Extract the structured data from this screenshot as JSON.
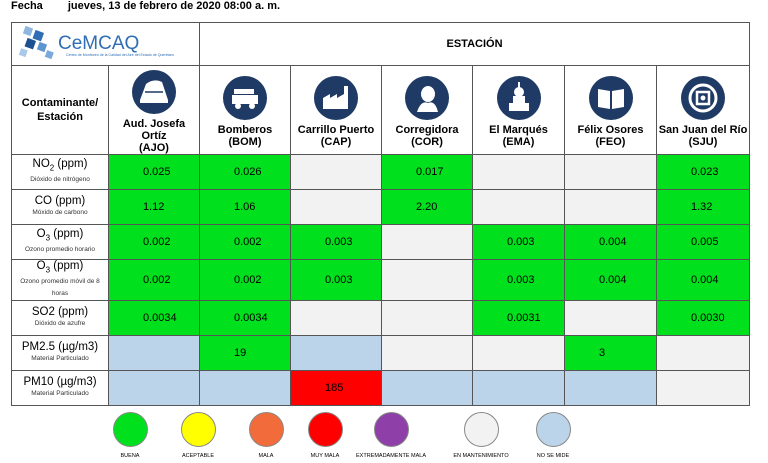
{
  "header": {
    "fecha_label": "Fecha",
    "fecha_value": "jueves, 13 de febrero de 2020   08:00 a. m."
  },
  "logo": {
    "name": "CeMCAQ",
    "tagline": "Centro de Monitoreo de la Calidad del Aire del Estado de Querétaro"
  },
  "table": {
    "title": "ESTACIÓN",
    "corner_label": "Contaminante/ Estación",
    "stations": [
      {
        "name": "Aud. Josefa Ortíz",
        "code": "(AJO)",
        "icon": "auditorium-icon"
      },
      {
        "name": "Bomberos",
        "code": "(BOM)",
        "icon": "fire-truck-icon"
      },
      {
        "name": "Carrillo Puerto",
        "code": "(CAP)",
        "icon": "factory-icon"
      },
      {
        "name": "Corregidora",
        "code": "(COR)",
        "icon": "woman-profile-icon"
      },
      {
        "name": "El Marqués",
        "code": "(EMA)",
        "icon": "church-icon"
      },
      {
        "name": "Félix Osores",
        "code": "(FEO)",
        "icon": "book-icon"
      },
      {
        "name": "San Juan del Río",
        "code": "(SJU)",
        "icon": "emblem-icon"
      }
    ],
    "rows": [
      {
        "pollutant": "NO2 (ppm)",
        "desc": "Dióxido de nitrógeno",
        "cells": [
          {
            "v": "0.025",
            "s": "g"
          },
          {
            "v": "0.026",
            "s": "g"
          },
          {
            "v": "",
            "s": "w"
          },
          {
            "v": "0.017",
            "s": "g"
          },
          {
            "v": "",
            "s": "w"
          },
          {
            "v": "",
            "s": "w"
          },
          {
            "v": "0.023",
            "s": "g"
          }
        ]
      },
      {
        "pollutant": "CO (ppm)",
        "desc": "Móxido de carbono",
        "cells": [
          {
            "v": "1.12",
            "s": "g"
          },
          {
            "v": "1.06",
            "s": "g"
          },
          {
            "v": "",
            "s": "w"
          },
          {
            "v": "2.20",
            "s": "g"
          },
          {
            "v": "",
            "s": "w"
          },
          {
            "v": "",
            "s": "w"
          },
          {
            "v": "1.32",
            "s": "g"
          }
        ]
      },
      {
        "pollutant": "O3 (ppm)",
        "desc": "Ozono promedio horario",
        "cells": [
          {
            "v": "0.002",
            "s": "g"
          },
          {
            "v": "0.002",
            "s": "g"
          },
          {
            "v": "0.003",
            "s": "g"
          },
          {
            "v": "",
            "s": "w"
          },
          {
            "v": "0.003",
            "s": "g"
          },
          {
            "v": "0.004",
            "s": "g"
          },
          {
            "v": "0.005",
            "s": "g"
          }
        ]
      },
      {
        "pollutant": "O3 (ppm)",
        "desc": "Ozono promedio móvil de 8 horas",
        "cells": [
          {
            "v": "0.002",
            "s": "g"
          },
          {
            "v": "0.002",
            "s": "g"
          },
          {
            "v": "0.003",
            "s": "g"
          },
          {
            "v": "",
            "s": "w"
          },
          {
            "v": "0.003",
            "s": "g"
          },
          {
            "v": "0.004",
            "s": "g"
          },
          {
            "v": "0.004",
            "s": "g"
          }
        ]
      },
      {
        "pollutant": "SO2 (ppm)",
        "desc": "Dióxido de azufre",
        "cells": [
          {
            "v": "0.0034",
            "s": "g"
          },
          {
            "v": "0.0034",
            "s": "g"
          },
          {
            "v": "",
            "s": "w"
          },
          {
            "v": "",
            "s": "w"
          },
          {
            "v": "0.0031",
            "s": "g"
          },
          {
            "v": "",
            "s": "w"
          },
          {
            "v": "0.0030",
            "s": "g"
          }
        ]
      },
      {
        "pollutant": "PM2.5 (µg/m3)",
        "desc": "Material Particulado",
        "cells": [
          {
            "v": "",
            "s": "b"
          },
          {
            "v": "19",
            "s": "g"
          },
          {
            "v": "",
            "s": "b"
          },
          {
            "v": "",
            "s": "w"
          },
          {
            "v": "",
            "s": "w"
          },
          {
            "v": "3",
            "s": "g"
          },
          {
            "v": "",
            "s": "w"
          }
        ]
      },
      {
        "pollutant": "PM10 (µg/m3)",
        "desc": "Material Particulado",
        "cells": [
          {
            "v": "",
            "s": "b"
          },
          {
            "v": "",
            "s": "b"
          },
          {
            "v": "185",
            "s": "r"
          },
          {
            "v": "",
            "s": "b"
          },
          {
            "v": "",
            "s": "b"
          },
          {
            "v": "",
            "s": "b"
          },
          {
            "v": "",
            "s": "w"
          }
        ]
      }
    ]
  },
  "colors": {
    "buena": "#00e01c",
    "aceptable": "#ffff00",
    "mala": "#f26b3a",
    "muy_mala": "#ff0000",
    "extremadamente_mala": "#8e3fa8",
    "mantenimiento": "#f2f2f2",
    "no_se_mide": "#bcd4ea"
  },
  "legend": [
    {
      "label": "BUENA",
      "color": "#00e01c"
    },
    {
      "label": "ACEPTABLE",
      "color": "#ffff00"
    },
    {
      "label": "MALA",
      "color": "#f26b3a"
    },
    {
      "label": "MUY MALA",
      "color": "#ff0000"
    },
    {
      "label": "EXTREMADAMENTE  MALA",
      "color": "#8e3fa8"
    },
    {
      "label": "EN MANTENIMIENTO",
      "color": "#f2f2f2"
    },
    {
      "label": "NO SE MIDE",
      "color": "#bcd4ea"
    }
  ]
}
